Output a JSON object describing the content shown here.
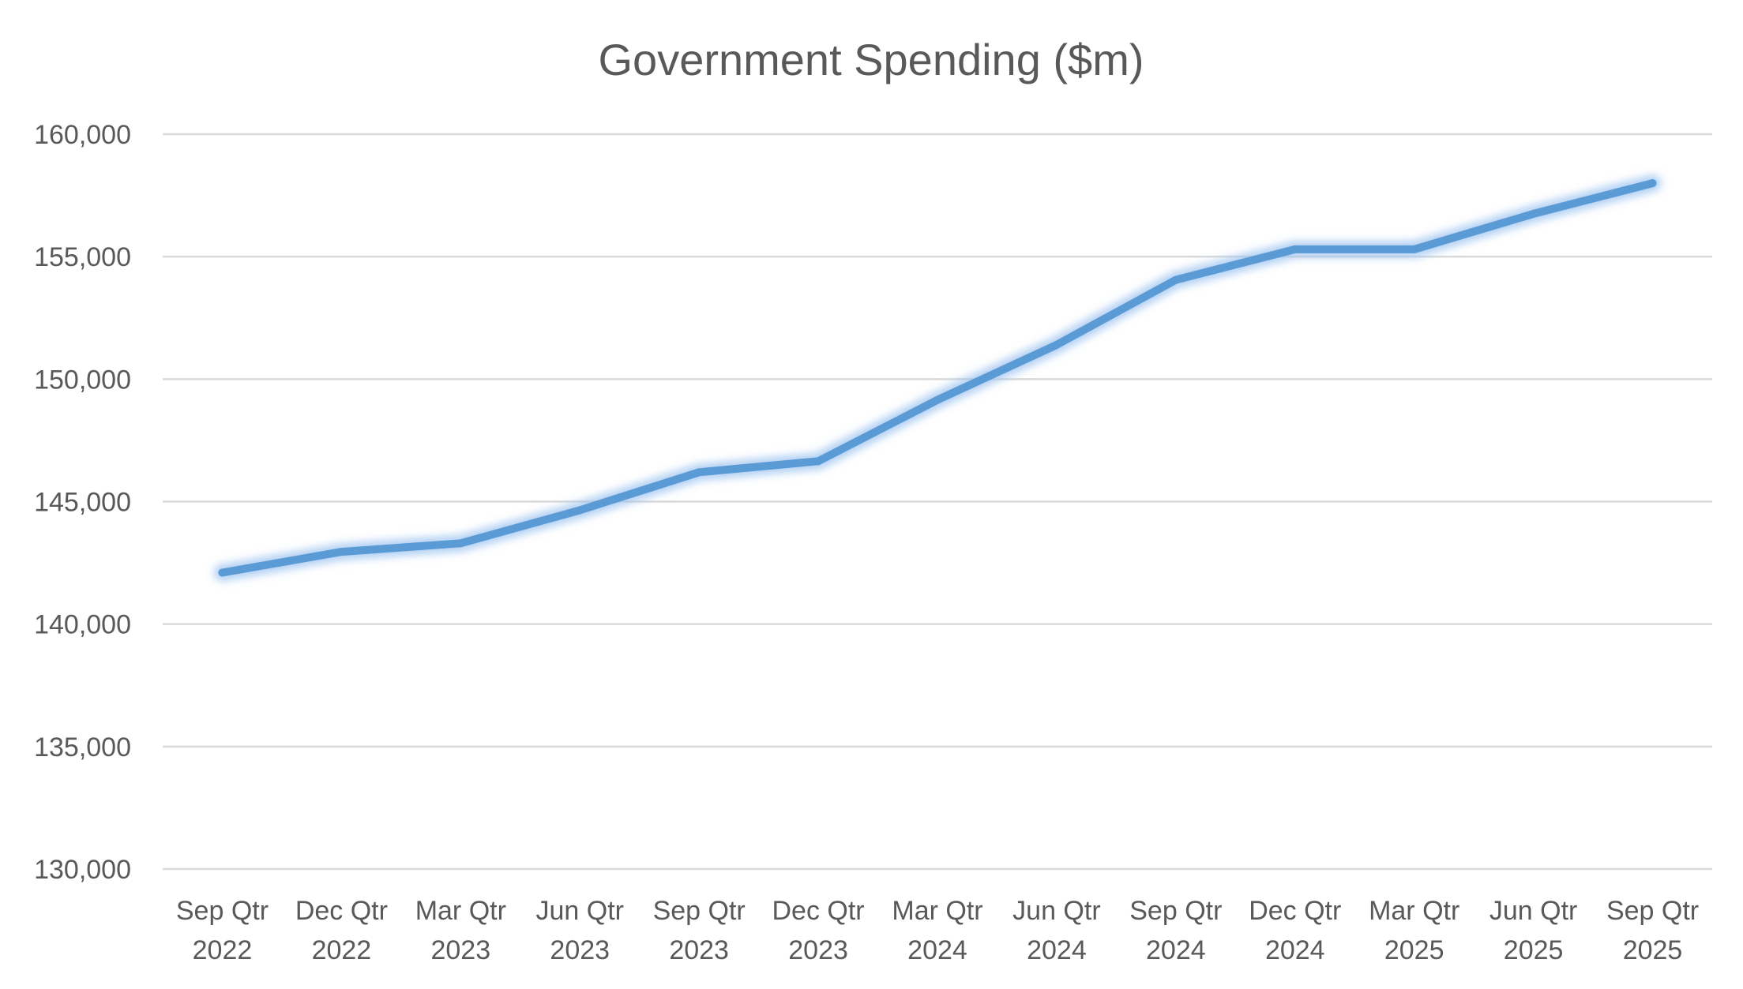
{
  "chart_data": {
    "type": "line",
    "title": "Government Spending ($m)",
    "xlabel": "",
    "ylabel": "",
    "categories": [
      [
        "Sep Qtr",
        "2022"
      ],
      [
        "Dec Qtr",
        "2022"
      ],
      [
        "Mar Qtr",
        "2023"
      ],
      [
        "Jun Qtr",
        "2023"
      ],
      [
        "Sep Qtr",
        "2023"
      ],
      [
        "Dec Qtr",
        "2023"
      ],
      [
        "Mar Qtr",
        "2024"
      ],
      [
        "Jun Qtr",
        "2024"
      ],
      [
        "Sep Qtr",
        "2024"
      ],
      [
        "Dec Qtr",
        "2024"
      ],
      [
        "Mar Qtr",
        "2025"
      ],
      [
        "Jun Qtr",
        "2025"
      ],
      [
        "Sep Qtr",
        "2025"
      ]
    ],
    "series": [
      {
        "values": [
          142100,
          142950,
          143300,
          144650,
          146200,
          146650,
          149150,
          151400,
          154050,
          155300,
          155300,
          156750,
          158000
        ]
      }
    ],
    "ylim": [
      130000,
      160000
    ],
    "yticks": [
      130000,
      135000,
      140000,
      145000,
      150000,
      155000,
      160000
    ],
    "ytick_labels": [
      "130,000",
      "135,000",
      "140,000",
      "145,000",
      "150,000",
      "155,000",
      "160,000"
    ],
    "grid": true,
    "legend": "none"
  },
  "colors": {
    "line": "#5b9bd5",
    "glow": "#9cc3f0",
    "gridline": "#d9d9d9",
    "text": "#595959"
  }
}
